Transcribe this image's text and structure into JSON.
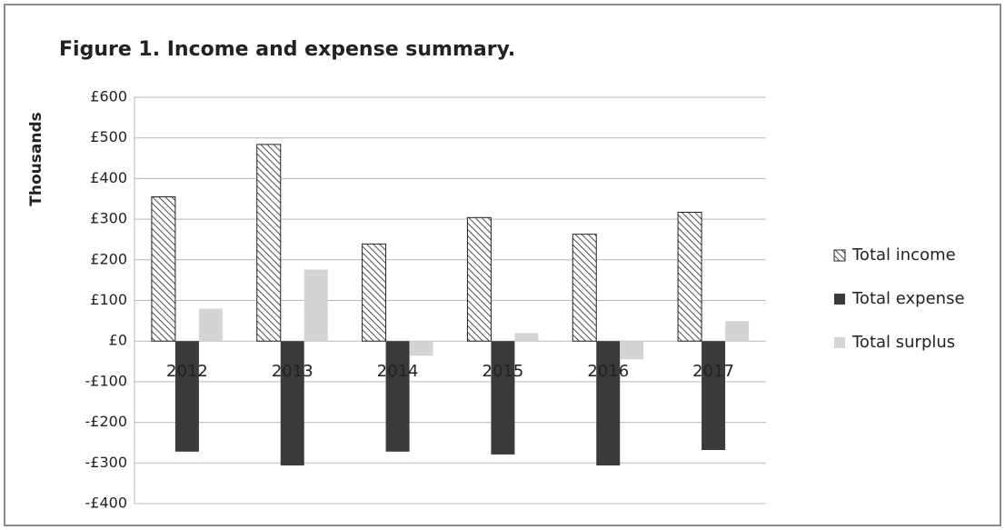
{
  "chart_data": {
    "type": "bar",
    "title": "Figure 1. Income and expense summary.",
    "y_label": "Thousands",
    "categories": [
      "2012",
      "2013",
      "2014",
      "2015",
      "2016",
      "2017"
    ],
    "series": [
      {
        "name": "Total income",
        "color": "#ffffff",
        "pattern": "hatch",
        "values": [
          355,
          484,
          239,
          304,
          263,
          317
        ]
      },
      {
        "name": "Total expense",
        "color": "#3a3a3a",
        "values": [
          -272,
          -306,
          -272,
          -279,
          -306,
          -268
        ]
      },
      {
        "name": "Total surplus",
        "color": "#d4d4d4",
        "values": [
          80,
          176,
          -36,
          20,
          -45,
          49
        ]
      }
    ],
    "ylim": [
      -400,
      600
    ],
    "yticks": [
      {
        "value": -400,
        "label": "-£400"
      },
      {
        "value": -300,
        "label": "-£300"
      },
      {
        "value": -200,
        "label": "-£200"
      },
      {
        "value": -100,
        "label": "-£100"
      },
      {
        "value": 0,
        "label": "£0"
      },
      {
        "value": 100,
        "label": "£100"
      },
      {
        "value": 200,
        "label": "£200"
      },
      {
        "value": 300,
        "label": "£300"
      },
      {
        "value": 400,
        "label": "£400"
      },
      {
        "value": 500,
        "label": "£500"
      },
      {
        "value": 600,
        "label": "£600"
      }
    ],
    "grid": true,
    "legend": "right"
  }
}
